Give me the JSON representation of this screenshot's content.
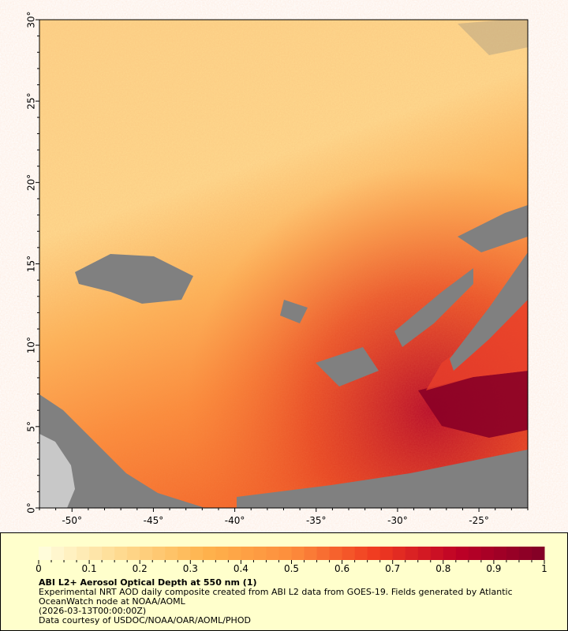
{
  "map": {
    "lon_range": [
      -52,
      -22
    ],
    "lat_range": [
      0,
      30
    ],
    "lon_ticks": [
      -50,
      -45,
      -40,
      -35,
      -30,
      -25
    ],
    "lat_ticks": [
      0,
      5,
      10,
      15,
      20,
      25,
      30
    ],
    "lon_tick_labels": [
      "-50°",
      "-45°",
      "-40°",
      "-35°",
      "-30°",
      "-25°"
    ],
    "lat_tick_labels": [
      "0°",
      "5°",
      "10°",
      "15°",
      "20°",
      "25°",
      "30°"
    ],
    "no_data_color": "#808080",
    "land_color": "#c8c8c8"
  },
  "colorbar": {
    "min": 0,
    "max": 1,
    "steps": 40,
    "tick_labels": [
      "0",
      "0.1",
      "0.2",
      "0.3",
      "0.4",
      "0.5",
      "0.6",
      "0.7",
      "0.8",
      "0.9",
      "1"
    ],
    "colors": [
      "#ffffe0",
      "#fed98e",
      "#feb24c",
      "#fd8d3c",
      "#f03b20",
      "#bd0026",
      "#800026"
    ]
  },
  "legend": {
    "title": "ABI L2+ Aerosol Optical Depth at 550 nm (1)",
    "line1": "Experimental NRT AOD daily composite created from ABI L2 data from GOES-19. Fields generated by Atlantic",
    "line2": "OceanWatch node at NOAA/AOML",
    "line3": "(2026-03-13T00:00:00Z)",
    "line4": "Data courtesy of USDOC/NOAA/OAR/AOML/PHOD"
  }
}
